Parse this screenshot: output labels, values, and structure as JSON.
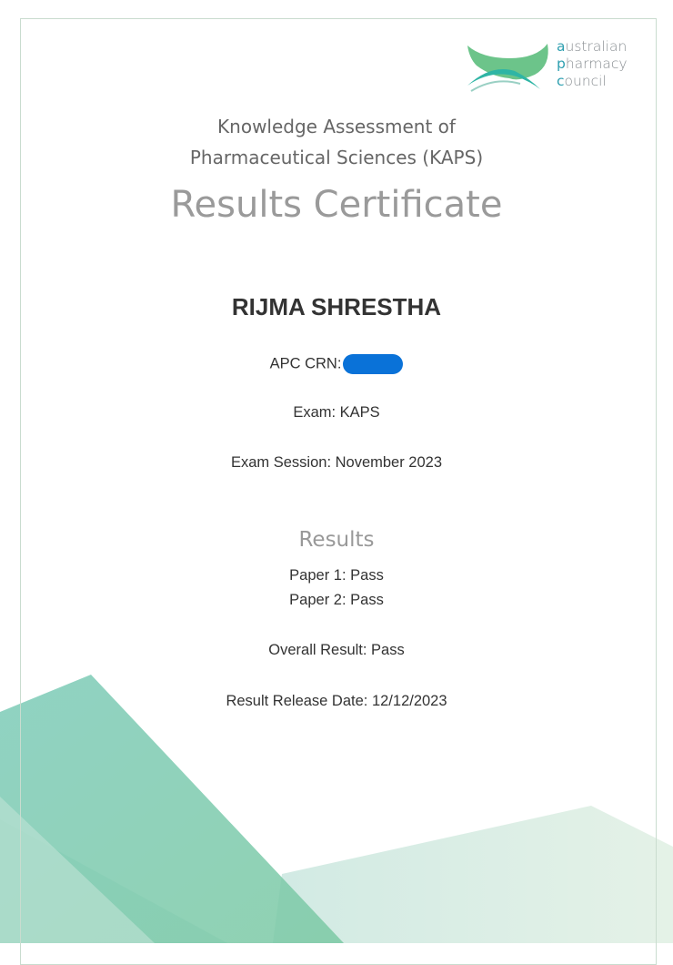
{
  "logo": {
    "line1_initial": "a",
    "line1_rest": "ustralian",
    "line2_initial": "p",
    "line2_rest": "harmacy",
    "line3_initial": "c",
    "line3_rest": "ouncil"
  },
  "header": {
    "line1": "Knowledge Assessment of",
    "line2": "Pharmaceutical Sciences (KAPS)"
  },
  "title": "Results Certificate",
  "candidate": {
    "name": "RIJMA SHRESTHA",
    "crn_label": "APC CRN:",
    "exam": "Exam: KAPS",
    "session": "Exam Session: November 2023"
  },
  "results": {
    "heading": "Results",
    "paper1": "Paper 1: Pass",
    "paper2": "Paper 2: Pass",
    "overall": "Overall Result: Pass",
    "release": "Result Release Date: 12/12/2023"
  },
  "colors": {
    "accent": "#2e9fb0",
    "logo_green": "#6cc48a",
    "redaction": "#0a72d8"
  }
}
